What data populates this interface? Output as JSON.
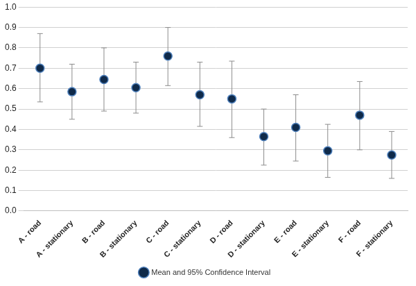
{
  "chart_data": {
    "type": "scatter",
    "categories": [
      "A - road",
      "A - stationary",
      "B - road",
      "B - stationary",
      "C - road",
      "C - stationary",
      "D - road",
      "D - stationary",
      "E - road",
      "E - stationary",
      "F - road",
      "F - stationary"
    ],
    "series": [
      {
        "name": "Mean and 95% Confidence Interval",
        "color": "#0f2a4a",
        "marker": "circle",
        "values": [
          0.7,
          0.585,
          0.645,
          0.605,
          0.76,
          0.57,
          0.55,
          0.365,
          0.41,
          0.295,
          0.47,
          0.275
        ],
        "ci_low": [
          0.535,
          0.45,
          0.49,
          0.48,
          0.615,
          0.415,
          0.36,
          0.225,
          0.245,
          0.165,
          0.3,
          0.16
        ],
        "ci_high": [
          0.87,
          0.72,
          0.8,
          0.73,
          0.9,
          0.73,
          0.735,
          0.5,
          0.57,
          0.425,
          0.635,
          0.39
        ]
      }
    ],
    "ylim": [
      0,
      1
    ],
    "yticks": [
      {
        "value": 0,
        "label": "0.0"
      },
      0.1,
      0.2,
      0.3,
      0.4,
      0.5,
      0.6,
      0.7,
      0.8,
      0.9,
      {
        "value": 1,
        "label": "1.0"
      }
    ],
    "grid": true,
    "legend": "bottom"
  }
}
